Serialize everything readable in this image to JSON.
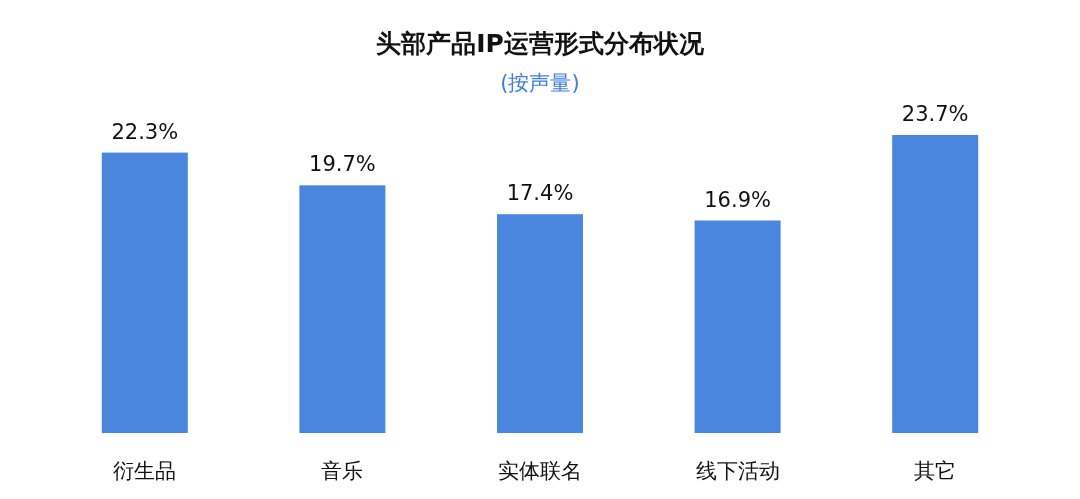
{
  "chart_data": {
    "type": "bar",
    "title": "头部产品IP运营形式分布状况",
    "subtitle": "(按声量)",
    "categories": [
      "衍生品",
      "音乐",
      "实体联名",
      "线下活动",
      "其它"
    ],
    "values": [
      22.3,
      19.7,
      17.4,
      16.9,
      23.7
    ],
    "value_labels": [
      "22.3%",
      "19.7%",
      "17.4%",
      "16.9%",
      "23.7%"
    ],
    "color": "#4a86de"
  }
}
